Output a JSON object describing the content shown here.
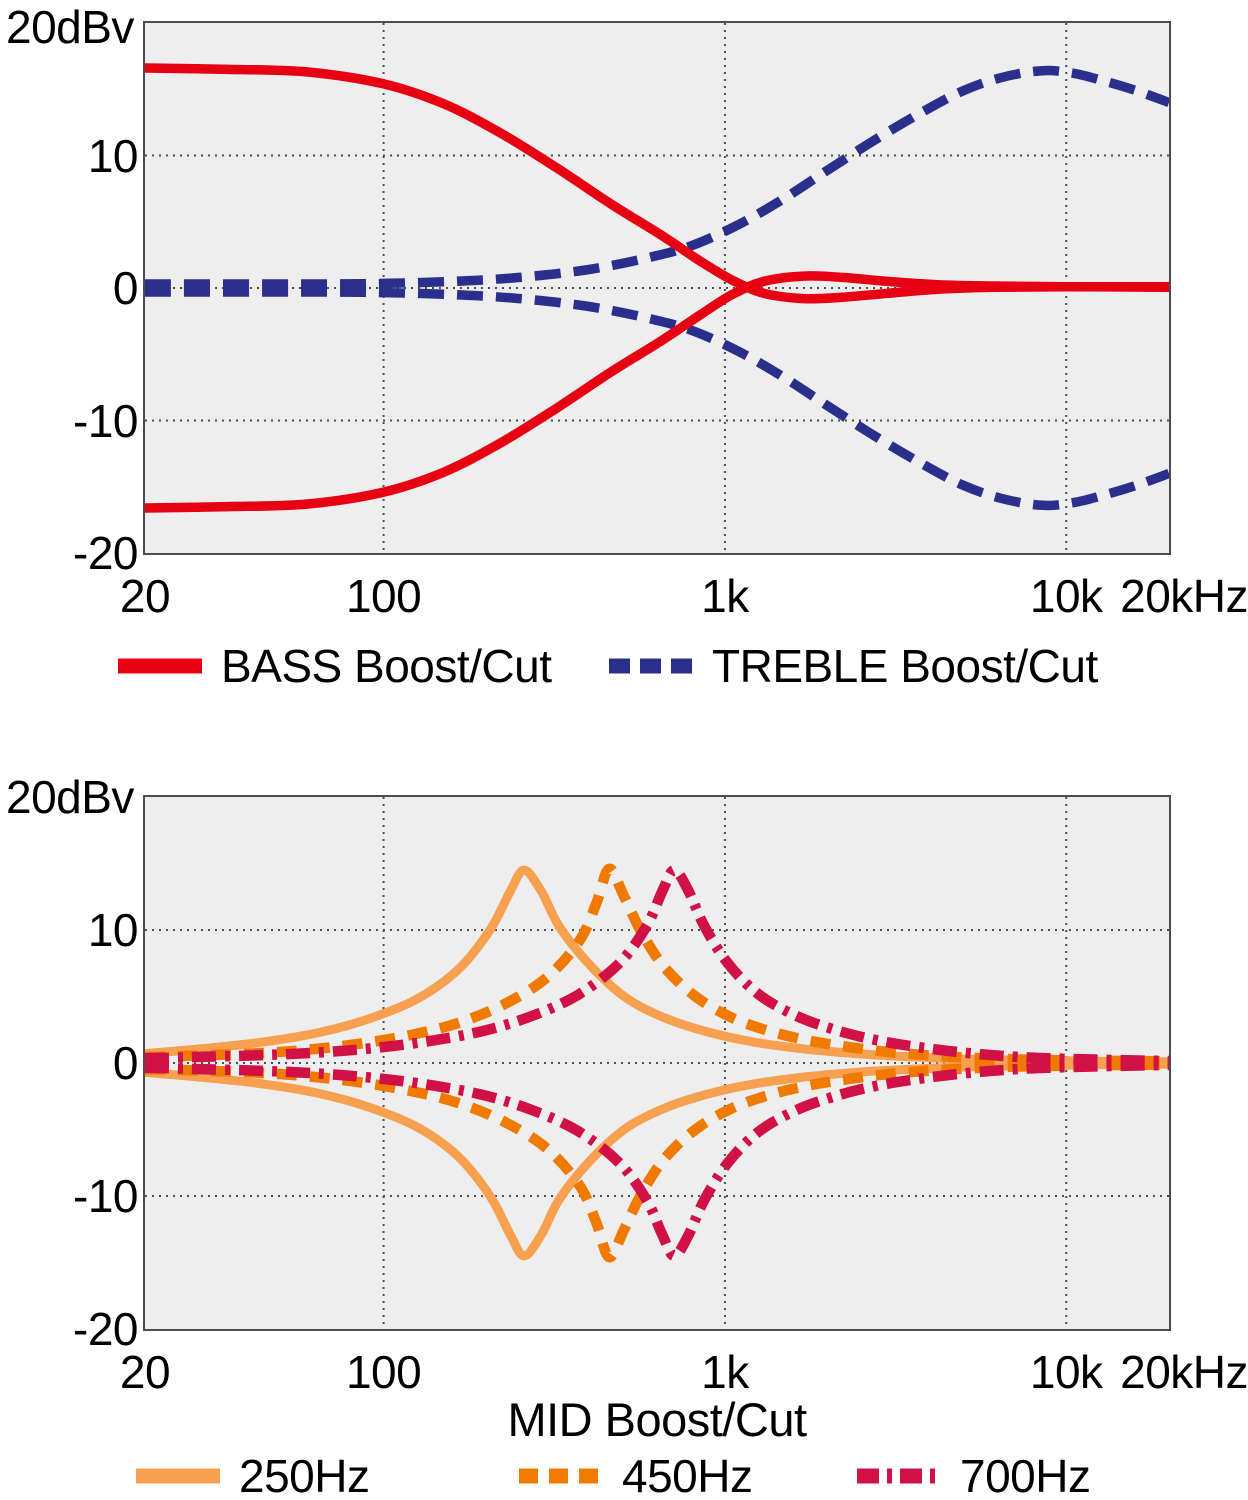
{
  "page": {
    "background": "#ffffff"
  },
  "chart_data": [
    {
      "type": "line",
      "title": "",
      "xlabel": "",
      "y_unit_label": "20dBv",
      "x_scale": "log",
      "x_range": [
        20,
        20000
      ],
      "y_range": [
        -20,
        20
      ],
      "x_grid": [
        100,
        1000,
        10000
      ],
      "y_grid": [
        10,
        0,
        -10
      ],
      "x_ticks": [
        {
          "label": "20",
          "f": 20,
          "anchor": "center"
        },
        {
          "label": "100",
          "f": 100,
          "anchor": "center"
        },
        {
          "label": "1k",
          "f": 1000,
          "anchor": "center"
        },
        {
          "label": "10k",
          "f": 10000,
          "anchor": "center"
        },
        {
          "label": "20kHz",
          "f": 20000,
          "anchor": "right"
        }
      ],
      "y_ticks": [
        {
          "label": "10",
          "v": 10
        },
        {
          "label": "0",
          "v": 0
        },
        {
          "label": "-10",
          "v": -10
        },
        {
          "label": "-20",
          "v": -20
        }
      ],
      "legend": [
        {
          "label": "BASS Boost/Cut",
          "series": "bass_boost",
          "swatch_dash": ""
        },
        {
          "label": "TREBLE Boost/Cut",
          "series": "treble_boost",
          "swatch_dash": "21 10"
        }
      ],
      "series": [
        {
          "name": "treble_boost",
          "color": "#2a2f8c",
          "width": 9.5,
          "dash": "26 13",
          "points": [
            [
              20,
              0.3
            ],
            [
              60,
              0.3
            ],
            [
              100,
              0.35
            ],
            [
              160,
              0.5
            ],
            [
              250,
              0.8
            ],
            [
              400,
              1.4
            ],
            [
              600,
              2.3
            ],
            [
              800,
              3.2
            ],
            [
              1100,
              4.8
            ],
            [
              1500,
              6.8
            ],
            [
              2000,
              8.9
            ],
            [
              2800,
              11.3
            ],
            [
              3800,
              13.3
            ],
            [
              5000,
              14.9
            ],
            [
              6500,
              15.9
            ],
            [
              8500,
              16.4
            ],
            [
              10500,
              16.2
            ],
            [
              13000,
              15.6
            ],
            [
              16000,
              14.9
            ],
            [
              20000,
              14.0
            ]
          ]
        },
        {
          "name": "treble_cut",
          "color": "#2a2f8c",
          "width": 9.5,
          "dash": "26 13",
          "points": [
            [
              20,
              -0.3
            ],
            [
              60,
              -0.3
            ],
            [
              100,
              -0.35
            ],
            [
              160,
              -0.5
            ],
            [
              250,
              -0.8
            ],
            [
              400,
              -1.4
            ],
            [
              600,
              -2.3
            ],
            [
              800,
              -3.2
            ],
            [
              1100,
              -4.8
            ],
            [
              1500,
              -6.8
            ],
            [
              2000,
              -8.9
            ],
            [
              2800,
              -11.3
            ],
            [
              3800,
              -13.3
            ],
            [
              5000,
              -14.9
            ],
            [
              6500,
              -15.9
            ],
            [
              8500,
              -16.4
            ],
            [
              10500,
              -16.2
            ],
            [
              13000,
              -15.6
            ],
            [
              16000,
              -14.9
            ],
            [
              20000,
              -14.0
            ]
          ]
        },
        {
          "name": "bass_boost",
          "color": "#e60012",
          "width": 9.5,
          "dash": "",
          "points": [
            [
              20,
              16.6
            ],
            [
              35,
              16.5
            ],
            [
              60,
              16.3
            ],
            [
              100,
              15.4
            ],
            [
              150,
              13.9
            ],
            [
              220,
              11.7
            ],
            [
              320,
              9.1
            ],
            [
              460,
              6.4
            ],
            [
              650,
              4.0
            ],
            [
              850,
              2.0
            ],
            [
              1050,
              0.6
            ],
            [
              1300,
              -0.4
            ],
            [
              1700,
              -0.8
            ],
            [
              2200,
              -0.7
            ],
            [
              3000,
              -0.4
            ],
            [
              4200,
              -0.1
            ],
            [
              6000,
              0.05
            ],
            [
              10000,
              0.1
            ],
            [
              20000,
              0.05
            ]
          ]
        },
        {
          "name": "bass_cut",
          "color": "#e60012",
          "width": 9.5,
          "dash": "",
          "points": [
            [
              20,
              -16.6
            ],
            [
              35,
              -16.5
            ],
            [
              60,
              -16.3
            ],
            [
              100,
              -15.4
            ],
            [
              150,
              -13.9
            ],
            [
              220,
              -11.7
            ],
            [
              320,
              -9.1
            ],
            [
              460,
              -6.4
            ],
            [
              650,
              -4.0
            ],
            [
              850,
              -2.0
            ],
            [
              1050,
              -0.5
            ],
            [
              1300,
              0.5
            ],
            [
              1700,
              0.9
            ],
            [
              2200,
              0.8
            ],
            [
              3000,
              0.5
            ],
            [
              4200,
              0.25
            ],
            [
              6000,
              0.15
            ],
            [
              10000,
              0.1
            ],
            [
              20000,
              0.1
            ]
          ]
        }
      ]
    },
    {
      "type": "line",
      "title": "",
      "xlabel": "MID Boost/Cut",
      "y_unit_label": "20dBv",
      "x_scale": "log",
      "x_range": [
        20,
        20000
      ],
      "y_range": [
        -20,
        20
      ],
      "x_grid": [
        100,
        1000,
        10000
      ],
      "y_grid": [
        10,
        0,
        -10
      ],
      "x_ticks": [
        {
          "label": "20",
          "f": 20,
          "anchor": "center"
        },
        {
          "label": "100",
          "f": 100,
          "anchor": "center"
        },
        {
          "label": "1k",
          "f": 1000,
          "anchor": "center"
        },
        {
          "label": "10k",
          "f": 10000,
          "anchor": "center"
        },
        {
          "label": "20kHz",
          "f": 20000,
          "anchor": "right"
        }
      ],
      "y_ticks": [
        {
          "label": "10",
          "v": 10
        },
        {
          "label": "0",
          "v": 0
        },
        {
          "label": "-10",
          "v": -10
        },
        {
          "label": "-20",
          "v": -20
        }
      ],
      "legend": [
        {
          "label": "250Hz",
          "series": "mid250_boost",
          "swatch_dash": ""
        },
        {
          "label": "450Hz",
          "series": "mid450_boost",
          "swatch_dash": "19 11"
        },
        {
          "label": "700Hz",
          "series": "mid700_boost",
          "swatch_dash": "22 8 5 8"
        }
      ],
      "series": [
        {
          "name": "mid250_boost",
          "color": "#f7a050",
          "width": 9,
          "dash": "",
          "points": [
            [
              20,
              0.7
            ],
            [
              30,
              1.1
            ],
            [
              45,
              1.6
            ],
            [
              65,
              2.3
            ],
            [
              90,
              3.3
            ],
            [
              125,
              4.8
            ],
            [
              165,
              7.0
            ],
            [
              205,
              10.0
            ],
            [
              235,
              12.9
            ],
            [
              258,
              14.5
            ],
            [
              290,
              12.9
            ],
            [
              330,
              10.1
            ],
            [
              415,
              7.0
            ],
            [
              520,
              4.8
            ],
            [
              680,
              3.3
            ],
            [
              900,
              2.3
            ],
            [
              1200,
              1.6
            ],
            [
              1650,
              1.1
            ],
            [
              2300,
              0.75
            ],
            [
              3300,
              0.5
            ],
            [
              5000,
              0.3
            ],
            [
              8000,
              0.2
            ],
            [
              13000,
              0.12
            ],
            [
              20000,
              0.1
            ]
          ]
        },
        {
          "name": "mid250_cut",
          "color": "#f7a050",
          "width": 9,
          "dash": "",
          "points": [
            [
              20,
              -0.7
            ],
            [
              30,
              -1.1
            ],
            [
              45,
              -1.6
            ],
            [
              65,
              -2.3
            ],
            [
              90,
              -3.3
            ],
            [
              125,
              -4.8
            ],
            [
              165,
              -7.0
            ],
            [
              205,
              -10.0
            ],
            [
              235,
              -12.9
            ],
            [
              258,
              -14.5
            ],
            [
              290,
              -12.9
            ],
            [
              330,
              -10.1
            ],
            [
              415,
              -7.0
            ],
            [
              520,
              -4.8
            ],
            [
              680,
              -3.3
            ],
            [
              900,
              -2.3
            ],
            [
              1200,
              -1.6
            ],
            [
              1650,
              -1.1
            ],
            [
              2300,
              -0.75
            ],
            [
              3300,
              -0.5
            ],
            [
              5000,
              -0.3
            ],
            [
              8000,
              -0.2
            ],
            [
              13000,
              -0.12
            ],
            [
              20000,
              -0.1
            ]
          ]
        },
        {
          "name": "mid450_boost",
          "color": "#f07a00",
          "width": 10.5,
          "dash": "20 13",
          "points": [
            [
              20,
              0.45
            ],
            [
              40,
              0.7
            ],
            [
              60,
              1.0
            ],
            [
              85,
              1.45
            ],
            [
              120,
              2.1
            ],
            [
              165,
              3.0
            ],
            [
              225,
              4.4
            ],
            [
              300,
              6.4
            ],
            [
              375,
              9.2
            ],
            [
              420,
              12.0
            ],
            [
              458,
              14.6
            ],
            [
              505,
              12.6
            ],
            [
              565,
              10.0
            ],
            [
              660,
              7.3
            ],
            [
              820,
              5.0
            ],
            [
              1050,
              3.4
            ],
            [
              1350,
              2.4
            ],
            [
              1750,
              1.7
            ],
            [
              2300,
              1.2
            ],
            [
              3100,
              0.8
            ],
            [
              4400,
              0.5
            ],
            [
              6500,
              0.3
            ],
            [
              10000,
              0.2
            ],
            [
              20000,
              0.12
            ]
          ]
        },
        {
          "name": "mid450_cut",
          "color": "#f07a00",
          "width": 10.5,
          "dash": "20 13",
          "points": [
            [
              20,
              -0.45
            ],
            [
              40,
              -0.7
            ],
            [
              60,
              -1.0
            ],
            [
              85,
              -1.45
            ],
            [
              120,
              -2.1
            ],
            [
              165,
              -3.0
            ],
            [
              225,
              -4.4
            ],
            [
              300,
              -6.4
            ],
            [
              375,
              -9.2
            ],
            [
              420,
              -12.0
            ],
            [
              458,
              -14.6
            ],
            [
              505,
              -12.6
            ],
            [
              565,
              -10.0
            ],
            [
              660,
              -7.3
            ],
            [
              820,
              -5.0
            ],
            [
              1050,
              -3.4
            ],
            [
              1350,
              -2.4
            ],
            [
              1750,
              -1.7
            ],
            [
              2300,
              -1.2
            ],
            [
              3100,
              -0.8
            ],
            [
              4400,
              -0.5
            ],
            [
              6500,
              -0.3
            ],
            [
              10000,
              -0.2
            ],
            [
              20000,
              -0.12
            ]
          ]
        },
        {
          "name": "mid700_boost",
          "color": "#d11045",
          "width": 10.5,
          "dash": "24 9 5 9",
          "points": [
            [
              20,
              0.35
            ],
            [
              45,
              0.6
            ],
            [
              70,
              0.85
            ],
            [
              100,
              1.2
            ],
            [
              140,
              1.7
            ],
            [
              195,
              2.4
            ],
            [
              270,
              3.5
            ],
            [
              370,
              5.1
            ],
            [
              490,
              7.5
            ],
            [
              590,
              10.3
            ],
            [
              655,
              12.9
            ],
            [
              710,
              14.5
            ],
            [
              780,
              13.0
            ],
            [
              870,
              10.3
            ],
            [
              1020,
              7.5
            ],
            [
              1250,
              5.2
            ],
            [
              1600,
              3.6
            ],
            [
              2100,
              2.5
            ],
            [
              2800,
              1.7
            ],
            [
              3800,
              1.15
            ],
            [
              5400,
              0.7
            ],
            [
              8000,
              0.4
            ],
            [
              12500,
              0.25
            ],
            [
              20000,
              0.15
            ]
          ]
        },
        {
          "name": "mid700_cut",
          "color": "#d11045",
          "width": 10.5,
          "dash": "24 9 5 9",
          "points": [
            [
              20,
              -0.35
            ],
            [
              45,
              -0.6
            ],
            [
              70,
              -0.85
            ],
            [
              100,
              -1.2
            ],
            [
              140,
              -1.7
            ],
            [
              195,
              -2.4
            ],
            [
              270,
              -3.5
            ],
            [
              370,
              -5.1
            ],
            [
              490,
              -7.5
            ],
            [
              590,
              -10.3
            ],
            [
              655,
              -12.9
            ],
            [
              710,
              -14.5
            ],
            [
              780,
              -13.0
            ],
            [
              870,
              -10.3
            ],
            [
              1020,
              -7.5
            ],
            [
              1250,
              -5.2
            ],
            [
              1600,
              -3.6
            ],
            [
              2100,
              -2.5
            ],
            [
              2800,
              -1.7
            ],
            [
              3800,
              -1.15
            ],
            [
              5400,
              -0.7
            ],
            [
              8000,
              -0.4
            ],
            [
              12500,
              -0.25
            ],
            [
              20000,
              -0.15
            ]
          ]
        }
      ]
    }
  ]
}
